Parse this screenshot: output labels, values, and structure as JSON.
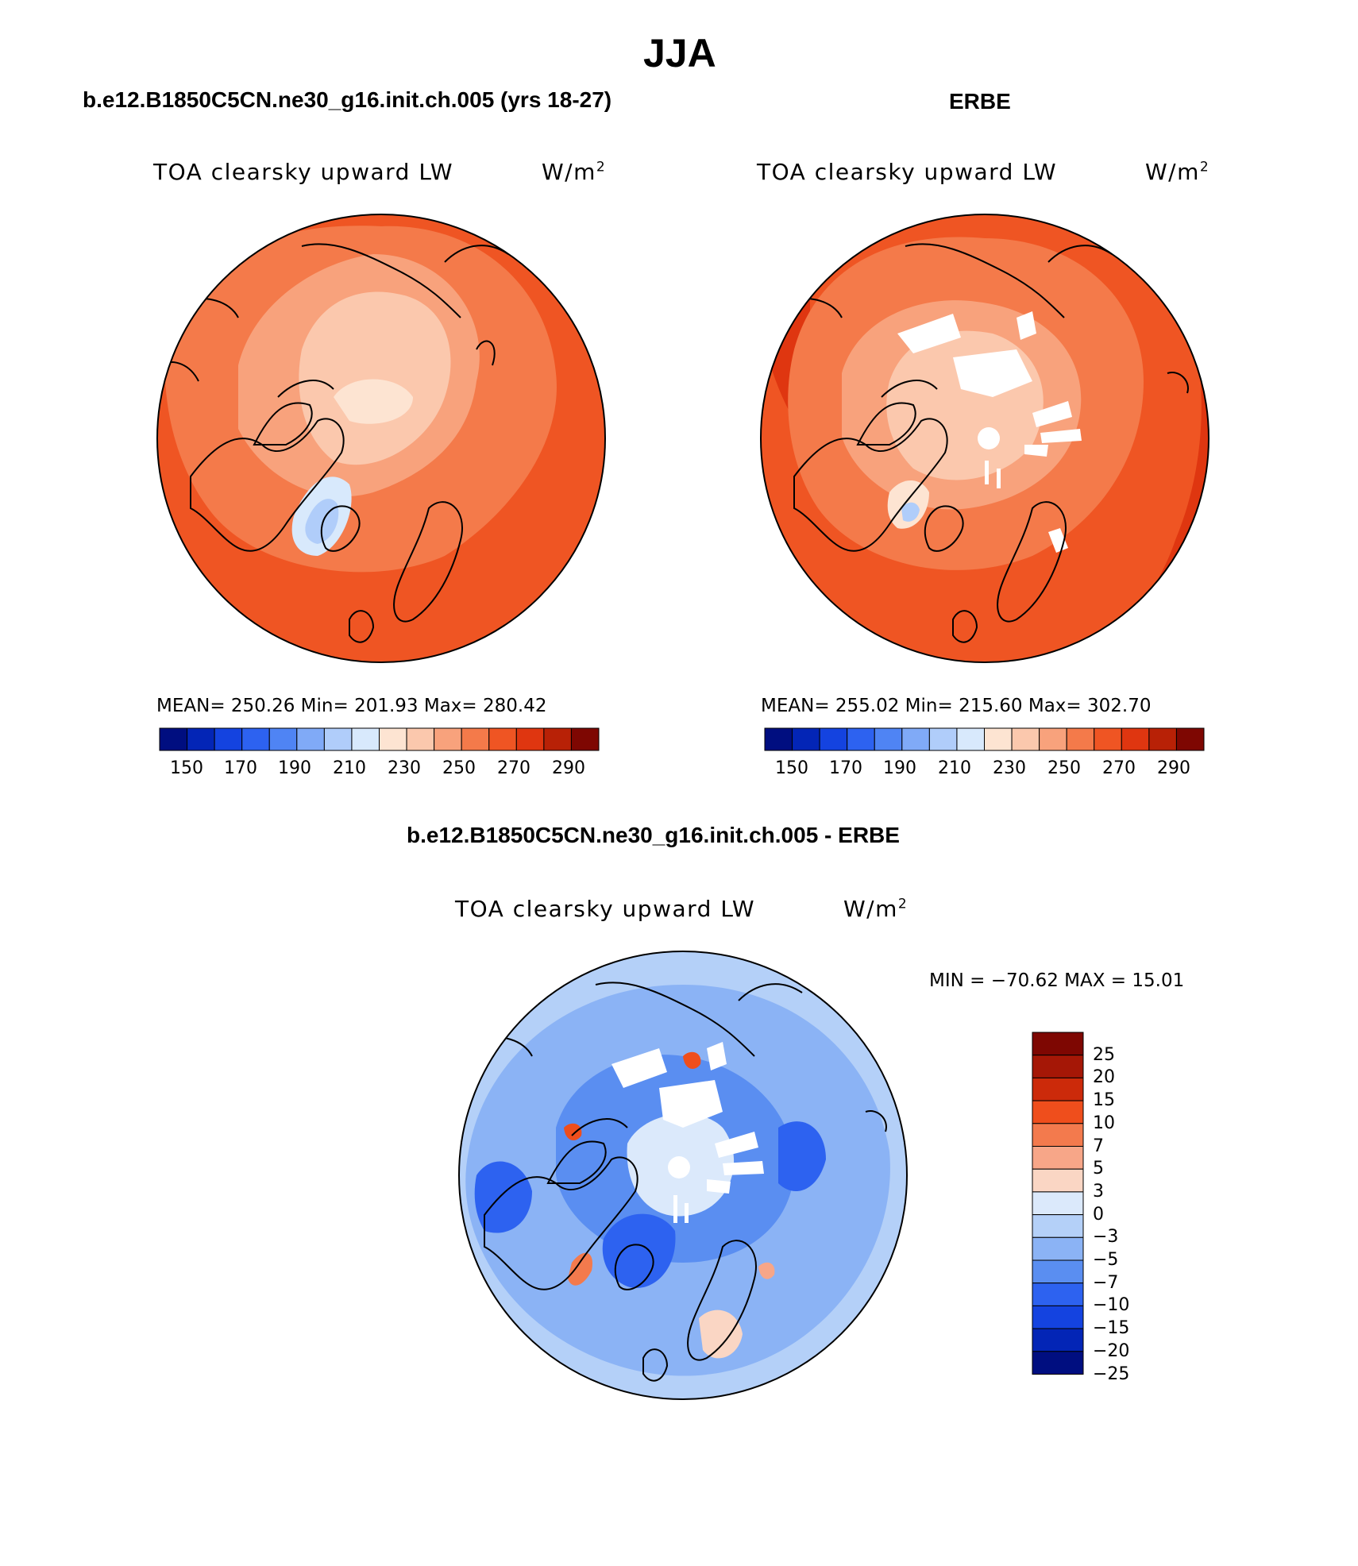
{
  "title": "JJA",
  "colors": {
    "scale": [
      "#000e80",
      "#0325b6",
      "#1443e0",
      "#2d62f0",
      "#4f84f4",
      "#80aaf7",
      "#b0cdfa",
      "#d8e9fc",
      "#fde4d2",
      "#fbc8ad",
      "#f8a27c",
      "#f47a4a",
      "#ef5523",
      "#df3610",
      "#b82106",
      "#7e0702"
    ],
    "diff": [
      "#7e0702",
      "#a51706",
      "#cc2a0a",
      "#ef4e1c",
      "#f37a4d",
      "#f7a688",
      "#fad6c4",
      "#dbe9fb",
      "#b4d0f8",
      "#8bb3f5",
      "#5a8ef1",
      "#2d62f0",
      "#1443e0",
      "#0325b6",
      "#000e80"
    ],
    "coast": "#000000",
    "missing": "#ffffff"
  },
  "panels": [
    {
      "id": "model",
      "title": "b.e12.B1850C5CN.ne30_g16.init.ch.005 (yrs 18-27)",
      "variable": "TOA clearsky upward LW",
      "units_base": "W/m",
      "units_exp": "2",
      "stats": "MEAN= 250.26   Min= 201.93   Max= 280.42",
      "ticks": [
        "150",
        "170",
        "190",
        "210",
        "230",
        "250",
        "270",
        "290"
      ]
    },
    {
      "id": "obs",
      "title": "ERBE",
      "variable": "TOA clearsky upward LW",
      "units_base": "W/m",
      "units_exp": "2",
      "stats": "MEAN= 255.02   Min= 215.60   Max= 302.70",
      "ticks": [
        "150",
        "170",
        "190",
        "210",
        "230",
        "250",
        "270",
        "290"
      ]
    }
  ],
  "diff": {
    "title": "b.e12.B1850C5CN.ne30_g16.init.ch.005 - ERBE",
    "variable": "TOA clearsky upward LW",
    "units_base": "W/m",
    "units_exp": "2",
    "minmax": "MIN = −70.62 MAX =   15.01",
    "levels": [
      "25",
      "20",
      "15",
      "10",
      "7",
      "5",
      "3",
      "0",
      "−3",
      "−5",
      "−7",
      "−10",
      "−15",
      "−20",
      "−25"
    ]
  }
}
